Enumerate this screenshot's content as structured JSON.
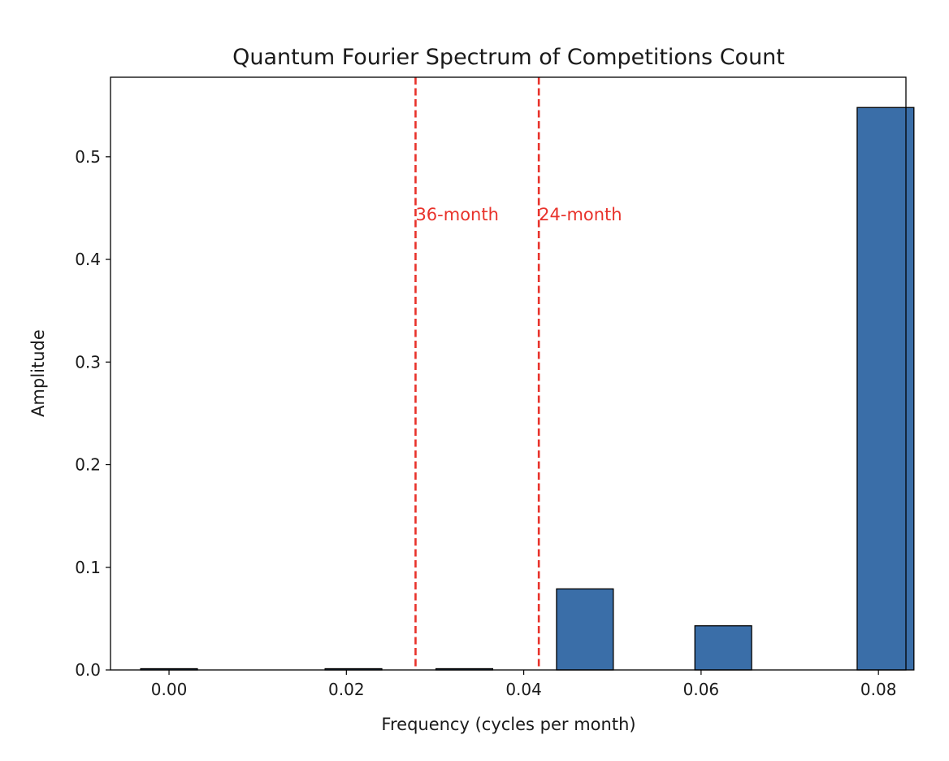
{
  "chart_data": {
    "type": "bar",
    "title": "Quantum Fourier Spectrum of Competitions Count",
    "xlabel": "Frequency (cycles per month)",
    "ylabel": "Amplitude",
    "xlim": [
      -0.0066,
      0.0831
    ],
    "ylim": [
      0.0,
      0.5775
    ],
    "bar_width": 0.0064,
    "x": [
      0.0,
      0.0208,
      0.0333,
      0.0469,
      0.0625,
      0.0808
    ],
    "values": [
      0.0012,
      0.0012,
      0.0012,
      0.079,
      0.043,
      0.548
    ],
    "x_ticks": [
      0.0,
      0.02,
      0.04,
      0.06,
      0.08
    ],
    "x_tick_labels": [
      "0.00",
      "0.02",
      "0.04",
      "0.06",
      "0.08"
    ],
    "y_ticks": [
      0.0,
      0.1,
      0.2,
      0.3,
      0.4,
      0.5
    ],
    "y_tick_labels": [
      "0.0",
      "0.1",
      "0.2",
      "0.3",
      "0.4",
      "0.5"
    ],
    "bar_color": "#3a6ea8",
    "bar_edge_color": "#000000",
    "grid": false,
    "annotations": [
      {
        "type": "vline",
        "x": 0.0278,
        "label": "36-month",
        "label_y": 0.4435,
        "color": "#e8322b"
      },
      {
        "type": "vline",
        "x": 0.0417,
        "label": "24-month",
        "label_y": 0.4435,
        "color": "#e8322b"
      }
    ]
  }
}
